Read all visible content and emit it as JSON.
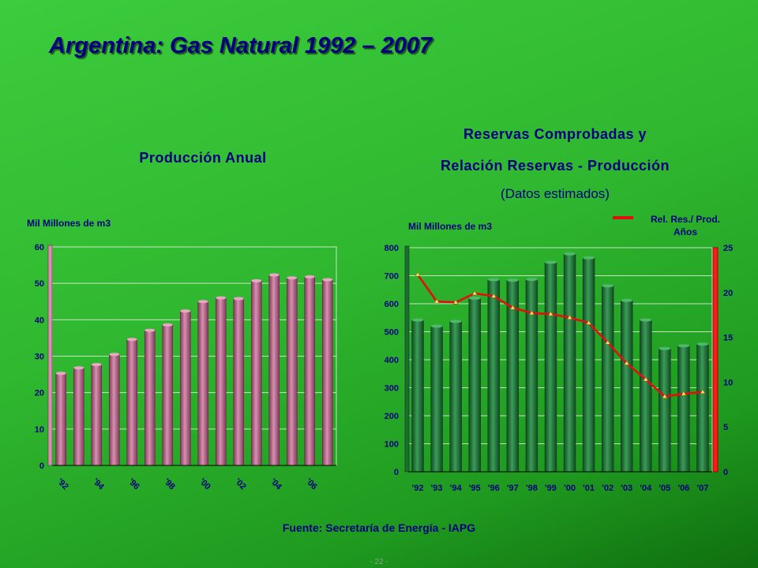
{
  "title": "Argentina: Gas Natural 1992 – 2007",
  "left_heading": "Producción Anual",
  "right_heading_line1": "Reservas Comprobadas y",
  "right_heading_line2": "Relación Reservas - Producción",
  "right_subheading": "(Datos estimados)",
  "left_unit": "Mil  Millones de m3",
  "right_unit": "Mil Millones de m3",
  "legend_label_line1": "Rel. Res./ Prod.",
  "legend_label_line2": "Años",
  "source": "Fuente: Secretaría de Energía - IAPG",
  "page_number": "- 22 -",
  "colors": {
    "production_bar": "#b96a8c",
    "reserves_bar": "#1e6b34",
    "ratio_line": "#e01010",
    "text": "#000080"
  },
  "chart_data": [
    {
      "type": "bar",
      "title": "Producción Anual",
      "ylabel": "Mil  Millones de m3",
      "ylim": [
        0,
        60
      ],
      "yticks": [
        "0",
        "10",
        "20",
        "30",
        "40",
        "50",
        "60"
      ],
      "x_tick_labels": [
        "'92",
        "'94",
        "'96",
        "'98",
        "'00",
        "'02",
        "'04",
        "'06"
      ],
      "categories": [
        "1992",
        "1993",
        "1994",
        "1995",
        "1996",
        "1997",
        "1998",
        "1999",
        "2000",
        "2001",
        "2002",
        "2003",
        "2004",
        "2005",
        "2006",
        "2007"
      ],
      "values": [
        25.3,
        26.8,
        27.7,
        30.5,
        34.6,
        37.1,
        38.6,
        42.4,
        45.0,
        46.0,
        45.8,
        50.7,
        52.3,
        51.5,
        51.8,
        51.0
      ],
      "grid": true
    },
    {
      "type": "bar",
      "title": "Reservas Comprobadas y Relación Reservas - Producción",
      "ylabel": "Mil Millones de m3",
      "ylim": [
        0,
        800
      ],
      "yticks": [
        "0",
        "100",
        "200",
        "300",
        "400",
        "500",
        "600",
        "700",
        "800"
      ],
      "y2lim": [
        0,
        25
      ],
      "y2ticks": [
        "0",
        "5",
        "10",
        "15",
        "20",
        "25"
      ],
      "categories": [
        "'92",
        "'93",
        "'94",
        "'95",
        "'96",
        "'97",
        "'98",
        "'99",
        "'00",
        "'01",
        "'02",
        "'03",
        "'04",
        "'05",
        "'06",
        "'07"
      ],
      "values": [
        542,
        520,
        537,
        620,
        686,
        684,
        687,
        748,
        778,
        764,
        664,
        612,
        542,
        440,
        450,
        456
      ],
      "line_series": [
        {
          "name": "Rel. Res./ Prod. Años",
          "axis": "right",
          "values": [
            22.0,
            19.0,
            18.9,
            19.9,
            19.6,
            18.3,
            17.7,
            17.6,
            17.2,
            16.6,
            14.4,
            12.1,
            10.3,
            8.4,
            8.7,
            8.9
          ]
        }
      ],
      "legend_position": "top-right",
      "grid": true
    }
  ]
}
